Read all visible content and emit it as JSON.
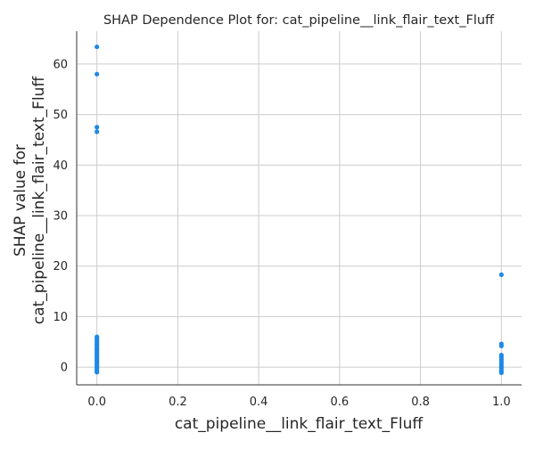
{
  "chart_data": {
    "type": "scatter",
    "title": "SHAP Dependence Plot for: cat_pipeline__link_flair_text_Fluff",
    "xlabel": "cat_pipeline__link_flair_text_Fluff",
    "ylabel_lines": [
      "SHAP value for",
      "cat_pipeline__link_flair_text_Fluff"
    ],
    "xlim": [
      -0.05,
      1.05
    ],
    "ylim": [
      -3.5,
      66.5
    ],
    "xticks": [
      0.0,
      0.2,
      0.4,
      0.6,
      0.8,
      1.0
    ],
    "xtick_labels": [
      "0.0",
      "0.2",
      "0.4",
      "0.6",
      "0.8",
      "1.0"
    ],
    "yticks": [
      0,
      10,
      20,
      30,
      40,
      50,
      60
    ],
    "ytick_labels": [
      "0",
      "10",
      "20",
      "30",
      "40",
      "50",
      "60"
    ],
    "grid": true,
    "marker_color": "#1e88e5",
    "points": [
      {
        "x": 0,
        "y": 63.4
      },
      {
        "x": 0,
        "y": 58.0
      },
      {
        "x": 0,
        "y": 47.5
      },
      {
        "x": 0,
        "y": 46.6
      },
      {
        "x": 0,
        "y": 6.0
      },
      {
        "x": 0,
        "y": 5.6
      },
      {
        "x": 0,
        "y": 5.2
      },
      {
        "x": 0,
        "y": 4.8
      },
      {
        "x": 0,
        "y": 4.5
      },
      {
        "x": 0,
        "y": 4.2
      },
      {
        "x": 0,
        "y": 3.8
      },
      {
        "x": 0,
        "y": 3.5
      },
      {
        "x": 0,
        "y": 3.2
      },
      {
        "x": 0,
        "y": 2.9
      },
      {
        "x": 0,
        "y": 2.6
      },
      {
        "x": 0,
        "y": 2.3
      },
      {
        "x": 0,
        "y": 2.0
      },
      {
        "x": 0,
        "y": 1.7
      },
      {
        "x": 0,
        "y": 1.4
      },
      {
        "x": 0,
        "y": 1.1
      },
      {
        "x": 0,
        "y": 0.8
      },
      {
        "x": 0,
        "y": 0.5
      },
      {
        "x": 0,
        "y": 0.2
      },
      {
        "x": 0,
        "y": -0.1
      },
      {
        "x": 0,
        "y": -0.4
      },
      {
        "x": 0,
        "y": -0.7
      },
      {
        "x": 0,
        "y": -1.0
      },
      {
        "x": 1,
        "y": 18.3
      },
      {
        "x": 1,
        "y": 4.6
      },
      {
        "x": 1,
        "y": 4.2
      },
      {
        "x": 1,
        "y": 2.4
      },
      {
        "x": 1,
        "y": 2.0
      },
      {
        "x": 1,
        "y": 1.6
      },
      {
        "x": 1,
        "y": 1.2
      },
      {
        "x": 1,
        "y": 0.8
      },
      {
        "x": 1,
        "y": 0.4
      },
      {
        "x": 1,
        "y": 0.0
      },
      {
        "x": 1,
        "y": -0.4
      },
      {
        "x": 1,
        "y": -0.8
      },
      {
        "x": 1,
        "y": -1.1
      }
    ]
  }
}
